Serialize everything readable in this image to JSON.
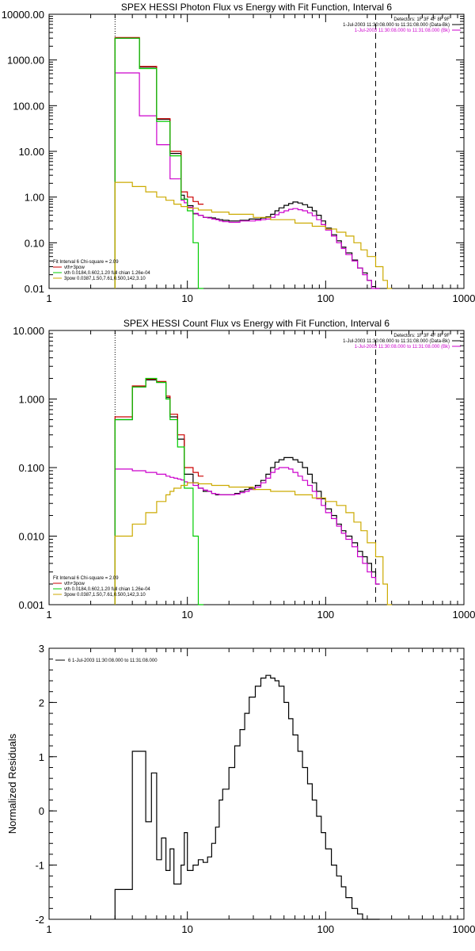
{
  "chart_data": [
    {
      "type": "line",
      "title": "SPEX HESSI Photon Flux vs Energy with Fit Function, Interval 6",
      "xscale": "log",
      "yscale": "log",
      "xlim": [
        1,
        1000
      ],
      "ylim": [
        0.01,
        10000
      ],
      "x_ticks": [
        "1",
        "10",
        "100",
        "1000"
      ],
      "y_ticks": [
        "0.01",
        "0.10",
        "1.00",
        "10.00",
        "100.00",
        "1000.00",
        "10000.00"
      ],
      "vlines": [
        {
          "x": 3,
          "style": "dotted"
        },
        {
          "x": 230,
          "style": "dashed"
        }
      ],
      "header_text": [
        "Detectors: 1F 3F 4F 8F 9F",
        "1-Jul-2003 11:30:08.000 to 11:31:08.000 (Data-Bk)",
        "1-Jul-2003 11:30:08.000 to 11:31:08.000 (Bk)"
      ],
      "header_colors": [
        "#000000",
        "#000000",
        "#cc00cc"
      ],
      "fit_text": {
        "header": "Fit Interval 6   Chi-square = 2.09",
        "lines": [
          "vth+3pow",
          "vth 0.0184,0.602,1.20  full chian 1.26e-04",
          "3pow 0.0387,1.50,7.61,0.500,142,3.10"
        ],
        "colors": [
          "#cc0000",
          "#00cc00",
          "#ccaa00"
        ]
      },
      "series": [
        {
          "name": "Data-Bk",
          "color": "#000000",
          "x": [
            3,
            3.5,
            4,
            4.5,
            5,
            5.5,
            6,
            6.5,
            7,
            7.5,
            8,
            8.5,
            9,
            9.5,
            10,
            11,
            12,
            13,
            14,
            15,
            16,
            17,
            18,
            20,
            22,
            24,
            26,
            28,
            31,
            34,
            37,
            40,
            43,
            46,
            50,
            54,
            58,
            63,
            68,
            74,
            80,
            86,
            93,
            100,
            110,
            120,
            130,
            140,
            155,
            170,
            185,
            200,
            215,
            230
          ],
          "y": [
            3000,
            3000,
            3000,
            700,
            700,
            700,
            50,
            50,
            50,
            9,
            9,
            9,
            1.1,
            0.9,
            0.65,
            0.43,
            0.4,
            0.36,
            0.36,
            0.35,
            0.33,
            0.32,
            0.31,
            0.3,
            0.3,
            0.31,
            0.31,
            0.33,
            0.33,
            0.35,
            0.37,
            0.42,
            0.5,
            0.58,
            0.66,
            0.72,
            0.78,
            0.74,
            0.68,
            0.6,
            0.5,
            0.4,
            0.3,
            0.21,
            0.15,
            0.11,
            0.08,
            0.06,
            0.042,
            0.028,
            0.022,
            0.015,
            0.011,
            0.006
          ]
        },
        {
          "name": "Bk",
          "color": "#cc00cc",
          "x": [
            3,
            3.5,
            4,
            4.5,
            5,
            5.5,
            6,
            6.5,
            7,
            7.5,
            8,
            8.5,
            9,
            9.5,
            10,
            11,
            12,
            13,
            14,
            15,
            16,
            17,
            18,
            20,
            22,
            24,
            26,
            28,
            31,
            34,
            37,
            40,
            43,
            46,
            50,
            54,
            58,
            63,
            68,
            74,
            80,
            86,
            93,
            100,
            110,
            120,
            130,
            140,
            155,
            170,
            185,
            200,
            215,
            230
          ],
          "y": [
            520,
            520,
            520,
            60,
            60,
            60,
            14,
            14,
            14,
            2.5,
            2.5,
            2.5,
            0.85,
            0.75,
            0.6,
            0.44,
            0.4,
            0.36,
            0.35,
            0.33,
            0.32,
            0.3,
            0.29,
            0.28,
            0.28,
            0.3,
            0.3,
            0.3,
            0.31,
            0.32,
            0.33,
            0.36,
            0.41,
            0.46,
            0.5,
            0.54,
            0.56,
            0.53,
            0.5,
            0.45,
            0.39,
            0.32,
            0.25,
            0.19,
            0.14,
            0.1,
            0.075,
            0.055,
            0.04,
            0.028,
            0.02,
            0.015,
            0.01,
            0.006
          ]
        },
        {
          "name": "vth+3pow",
          "color": "#cc0000",
          "x": [
            3,
            3.5,
            4,
            4.5,
            5,
            5.5,
            6,
            6.5,
            7,
            7.5,
            8,
            8.5,
            9,
            9.5,
            10,
            11,
            12
          ],
          "y": [
            3100,
            3100,
            3100,
            720,
            720,
            720,
            52,
            52,
            52,
            10,
            10,
            10,
            1.3,
            1.3,
            1.0,
            0.8,
            0.7
          ]
        },
        {
          "name": "vth",
          "color": "#00cc00",
          "x": [
            3,
            3.5,
            4,
            4.5,
            5,
            5.5,
            6,
            6.5,
            7,
            7.5,
            8,
            8.5,
            9,
            9.5,
            10,
            11,
            12
          ],
          "y": [
            3000,
            3000,
            3000,
            650,
            650,
            650,
            45,
            45,
            45,
            8,
            8,
            8,
            0.9,
            0.9,
            0.5,
            0.1,
            0.01
          ]
        },
        {
          "name": "3pow",
          "color": "#ccaa00",
          "x": [
            3,
            4,
            5,
            6,
            7,
            8,
            9,
            10,
            12,
            15,
            20,
            30,
            40,
            60,
            80,
            100,
            120,
            140,
            160,
            180,
            200,
            230,
            260,
            280
          ],
          "y": [
            2.1,
            1.7,
            1.3,
            1.0,
            0.85,
            0.7,
            0.62,
            0.57,
            0.52,
            0.47,
            0.42,
            0.36,
            0.32,
            0.27,
            0.23,
            0.2,
            0.17,
            0.14,
            0.1,
            0.07,
            0.05,
            0.03,
            0.015,
            0.01
          ]
        }
      ]
    },
    {
      "type": "line",
      "title": "SPEX HESSI Count Flux vs Energy with Fit Function, Interval 6",
      "xscale": "log",
      "yscale": "log",
      "xlim": [
        1,
        1000
      ],
      "ylim": [
        0.001,
        10
      ],
      "x_ticks": [
        "1",
        "10",
        "100",
        "1000"
      ],
      "y_ticks": [
        "0.001",
        "0.010",
        "0.100",
        "1.000",
        "10.000"
      ],
      "vlines": [
        {
          "x": 3,
          "style": "dotted"
        },
        {
          "x": 230,
          "style": "dashed"
        }
      ],
      "header_text": [
        "Detectors: 1F 3F 4F 8F 9F",
        "1-Jul-2003 11:30:08.000 to 11:31:08.000 (Data-Bk)",
        "1-Jul-2003 11:30:08.000 to 11:31:08.000 (Bk)"
      ],
      "header_colors": [
        "#000000",
        "#000000",
        "#cc00cc"
      ],
      "fit_text": {
        "header": "Fit Interval 6   Chi-square = 2.09",
        "lines": [
          "vth+3pow",
          "vth 0.0184,0.602,1.20  full chian 1.26e-04",
          "3pow 0.0387,1.50,7.61,0.500,142,3.10"
        ],
        "colors": [
          "#cc0000",
          "#00cc00",
          "#ccaa00"
        ]
      },
      "series": [
        {
          "name": "Data-Bk",
          "color": "#000000",
          "x": [
            3,
            3.5,
            4,
            4.5,
            5,
            5.5,
            6,
            6.5,
            7,
            7.5,
            8,
            8.5,
            9,
            9.5,
            10,
            11,
            12,
            13,
            14,
            15,
            16,
            17,
            18,
            20,
            22,
            24,
            26,
            28,
            31,
            34,
            37,
            40,
            43,
            46,
            50,
            54,
            58,
            63,
            68,
            74,
            80,
            86,
            93,
            100,
            110,
            120,
            130,
            140,
            155,
            170,
            185,
            200,
            215,
            230
          ],
          "y": [
            0.5,
            0.5,
            1.5,
            1.5,
            1.9,
            1.9,
            1.75,
            1.75,
            1.05,
            0.55,
            0.55,
            0.26,
            0.26,
            0.08,
            0.08,
            0.06,
            0.05,
            0.045,
            0.045,
            0.042,
            0.04,
            0.04,
            0.04,
            0.04,
            0.042,
            0.045,
            0.048,
            0.05,
            0.055,
            0.065,
            0.08,
            0.1,
            0.12,
            0.13,
            0.14,
            0.14,
            0.13,
            0.12,
            0.1,
            0.08,
            0.06,
            0.045,
            0.035,
            0.025,
            0.02,
            0.015,
            0.012,
            0.01,
            0.008,
            0.006,
            0.005,
            0.004,
            0.003,
            0.002
          ]
        },
        {
          "name": "Bk",
          "color": "#cc00cc",
          "x": [
            3,
            3.5,
            4,
            4.5,
            5,
            5.5,
            6,
            6.5,
            7,
            7.5,
            8,
            8.5,
            9,
            9.5,
            10,
            11,
            12,
            13,
            14,
            15,
            16,
            17,
            18,
            20,
            22,
            24,
            26,
            28,
            31,
            34,
            37,
            40,
            43,
            46,
            50,
            54,
            58,
            63,
            68,
            74,
            80,
            86,
            93,
            100,
            110,
            120,
            130,
            140,
            155,
            170,
            185,
            200,
            215,
            230
          ],
          "y": [
            0.095,
            0.095,
            0.09,
            0.09,
            0.085,
            0.085,
            0.08,
            0.08,
            0.075,
            0.072,
            0.07,
            0.068,
            0.066,
            0.062,
            0.06,
            0.055,
            0.05,
            0.047,
            0.045,
            0.042,
            0.041,
            0.04,
            0.04,
            0.04,
            0.041,
            0.043,
            0.045,
            0.048,
            0.052,
            0.06,
            0.07,
            0.085,
            0.095,
            0.1,
            0.1,
            0.095,
            0.085,
            0.075,
            0.065,
            0.055,
            0.045,
            0.035,
            0.028,
            0.022,
            0.018,
            0.014,
            0.011,
            0.009,
            0.007,
            0.005,
            0.004,
            0.003,
            0.0025,
            0.002
          ]
        },
        {
          "name": "vth+3pow",
          "color": "#cc0000",
          "x": [
            3,
            3.5,
            4,
            4.5,
            5,
            5.5,
            6,
            6.5,
            7,
            7.5,
            8,
            8.5,
            9,
            9.5,
            10,
            11,
            12
          ],
          "y": [
            0.55,
            0.55,
            1.55,
            1.55,
            1.95,
            1.95,
            1.8,
            1.8,
            1.1,
            0.6,
            0.6,
            0.3,
            0.3,
            0.1,
            0.1,
            0.085,
            0.075
          ]
        },
        {
          "name": "vth",
          "color": "#00cc00",
          "x": [
            3,
            3.5,
            4,
            4.5,
            5,
            5.5,
            6,
            6.5,
            7,
            7.5,
            8,
            8.5,
            9,
            9.5,
            10,
            11,
            12
          ],
          "y": [
            0.5,
            0.5,
            1.5,
            1.5,
            2.0,
            2.0,
            1.75,
            1.75,
            1.0,
            0.5,
            0.5,
            0.2,
            0.2,
            0.05,
            0.05,
            0.01,
            0.001
          ]
        },
        {
          "name": "3pow",
          "color": "#ccaa00",
          "x": [
            3,
            3.5,
            4,
            4.5,
            5,
            5.5,
            6,
            6.5,
            7,
            7.5,
            8,
            9,
            10,
            12,
            15,
            20,
            30,
            40,
            60,
            80,
            100,
            120,
            140,
            160,
            180,
            200,
            230,
            260,
            280
          ],
          "y": [
            0.01,
            0.01,
            0.015,
            0.015,
            0.022,
            0.022,
            0.032,
            0.032,
            0.04,
            0.045,
            0.05,
            0.055,
            0.06,
            0.058,
            0.055,
            0.052,
            0.048,
            0.045,
            0.04,
            0.036,
            0.032,
            0.028,
            0.022,
            0.016,
            0.012,
            0.008,
            0.005,
            0.002,
            0.001
          ]
        }
      ]
    },
    {
      "type": "line",
      "title": "",
      "ylabel": "Normalized Residuals",
      "xscale": "log",
      "xlim": [
        1,
        1000
      ],
      "ylim": [
        -2,
        3
      ],
      "x_ticks": [
        "1",
        "10",
        "100",
        "1000"
      ],
      "y_ticks": [
        "-2",
        "-1",
        "0",
        "1",
        "2",
        "3"
      ],
      "legend_text": "6  1-Jul-2003 11:30:08.000 to 11:31:08.000",
      "series": [
        {
          "name": "residuals",
          "color": "#000000",
          "x": [
            3,
            4,
            4.5,
            5,
            5.5,
            6,
            6.5,
            7,
            7.5,
            8,
            9,
            9.5,
            10,
            11,
            12,
            13,
            14,
            15,
            16,
            17,
            18,
            20,
            22,
            24,
            26,
            28,
            31,
            34,
            37,
            40,
            43,
            46,
            50,
            54,
            58,
            63,
            68,
            74,
            80,
            86,
            93,
            100,
            110,
            120,
            130,
            140,
            155,
            170,
            185,
            200,
            215,
            230
          ],
          "y": [
            -1.45,
            1.1,
            1.1,
            -0.2,
            0.7,
            -0.9,
            -0.5,
            -1.1,
            -0.7,
            -1.35,
            -1.0,
            -0.4,
            -1.1,
            -1.0,
            -0.9,
            -0.95,
            -0.85,
            -0.6,
            -0.3,
            0.2,
            0.4,
            0.8,
            1.2,
            1.5,
            1.8,
            2.1,
            2.3,
            2.45,
            2.5,
            2.45,
            2.4,
            2.3,
            2.0,
            1.7,
            1.4,
            1.1,
            0.8,
            0.5,
            0.2,
            -0.1,
            -0.4,
            -0.7,
            -1.0,
            -1.2,
            -1.4,
            -1.6,
            -1.8,
            -1.9,
            -2.0,
            -2.0,
            -2.0,
            -2.0
          ]
        }
      ]
    }
  ]
}
